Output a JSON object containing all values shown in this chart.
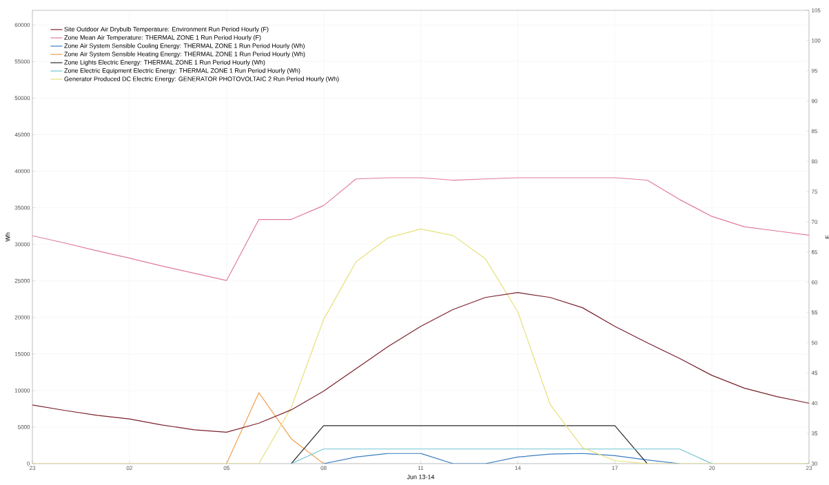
{
  "chart_data": {
    "type": "line",
    "xlabel": "Jun 13-14",
    "ylabel": "Wh",
    "y2label": "F",
    "categories": [
      "23",
      null,
      null,
      "02",
      null,
      null,
      "05",
      null,
      null,
      "08",
      null,
      null,
      "11",
      null,
      null,
      "14",
      null,
      null,
      "17",
      null,
      null,
      "20",
      null,
      null,
      "23"
    ],
    "ylim": [
      0,
      62000
    ],
    "yticks": [
      0,
      5000,
      10000,
      15000,
      20000,
      25000,
      30000,
      35000,
      40000,
      45000,
      50000,
      55000,
      60000
    ],
    "y2lim": [
      30,
      105
    ],
    "y2ticks": [
      30,
      35,
      40,
      45,
      50,
      55,
      60,
      65,
      70,
      75,
      80,
      85,
      90,
      95,
      100,
      105
    ],
    "grid": true,
    "legend": "top left",
    "marker": "none",
    "line_style": "solid",
    "series": [
      {
        "name": "Site Outdoor Air Drybulb Temperature: Environment Run Period Hourly (F)",
        "color": "#7a1f2a",
        "axis": "y2",
        "values": [
          39.7,
          38.8,
          38.0,
          37.4,
          36.4,
          35.6,
          35.2,
          36.7,
          38.9,
          42.0,
          45.7,
          49.4,
          52.7,
          55.5,
          57.5,
          58.3,
          57.5,
          55.8,
          52.7,
          50.0,
          47.4,
          44.6,
          42.5,
          41.1,
          40.0
        ]
      },
      {
        "name": "Zone Mean Air Temperature: THERMAL ZONE 1 Run Period Hourly (F)",
        "color": "#e07a98",
        "axis": "y2",
        "values": [
          67.7,
          66.5,
          65.2,
          64.0,
          62.7,
          61.5,
          60.3,
          70.4,
          70.4,
          72.7,
          77.1,
          77.3,
          77.3,
          76.9,
          77.1,
          77.3,
          77.3,
          77.3,
          77.3,
          76.9,
          73.7,
          70.9,
          69.2,
          68.5,
          67.8
        ]
      },
      {
        "name": "Zone Air System Sensible Cooling Energy: THERMAL ZONE 1 Run Period Hourly (Wh)",
        "color": "#3a7dc0",
        "values": [
          null,
          null,
          null,
          null,
          null,
          null,
          null,
          null,
          null,
          0,
          900,
          1400,
          1400,
          0,
          0,
          900,
          1300,
          1400,
          1100,
          500,
          0,
          null,
          null,
          null,
          null
        ]
      },
      {
        "name": "Zone Air System Sensible Heating Energy: THERMAL ZONE 1 Run Period Hourly (Wh)",
        "color": "#f0a050",
        "values": [
          null,
          null,
          null,
          null,
          null,
          null,
          0,
          9700,
          3400,
          0,
          null,
          null,
          null,
          null,
          null,
          null,
          null,
          null,
          null,
          null,
          null,
          null,
          null,
          null,
          null
        ]
      },
      {
        "name": "Zone Lights Electric Energy: THERMAL ZONE 1 Run Period Hourly (Wh)",
        "color": "#2a2a2a",
        "values": [
          null,
          null,
          null,
          null,
          null,
          null,
          null,
          null,
          0,
          5200,
          5200,
          5200,
          5200,
          5200,
          5200,
          5200,
          5200,
          5200,
          5200,
          0,
          null,
          null,
          null,
          null,
          null
        ]
      },
      {
        "name": "Zone Electric Equipment Electric Energy: THERMAL ZONE 1 Run Period Hourly (Wh)",
        "color": "#6cc4d4",
        "values": [
          null,
          null,
          null,
          null,
          null,
          null,
          null,
          null,
          0,
          2000,
          2000,
          2000,
          2000,
          2000,
          2000,
          2000,
          2000,
          2000,
          2000,
          2000,
          2000,
          0,
          null,
          null,
          null
        ]
      },
      {
        "name": "Generator Produced DC Electric Energy: GENERATOR PHOTOVOLTAIC 2 Run Period Hourly (Wh)",
        "color": "#e6e07a",
        "values": [
          0,
          0,
          0,
          0,
          0,
          0,
          0,
          0,
          7700,
          19700,
          27600,
          30900,
          32100,
          31200,
          28000,
          20800,
          8100,
          2200,
          400,
          0,
          0,
          0,
          0,
          0,
          0
        ]
      }
    ]
  }
}
